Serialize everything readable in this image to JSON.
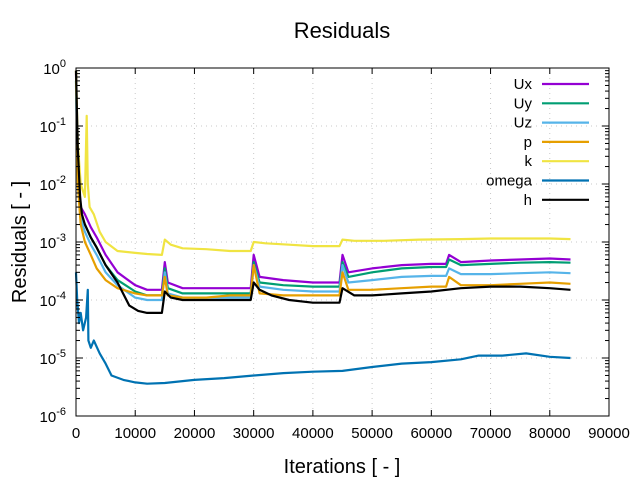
{
  "chart_data": {
    "type": "line",
    "title": "Residuals",
    "xlabel": "Iterations [ - ]",
    "ylabel": "Residuals [ - ]",
    "xlim": [
      0,
      90000
    ],
    "ylim": [
      1e-06,
      1
    ],
    "yscale": "log",
    "grid": true,
    "legend_position": "top-right",
    "x_ticks": [
      "0",
      "10000",
      "20000",
      "30000",
      "40000",
      "50000",
      "60000",
      "70000",
      "80000",
      "90000"
    ],
    "y_ticks": [
      {
        "base": "10",
        "exp": "-6"
      },
      {
        "base": "10",
        "exp": "-5"
      },
      {
        "base": "10",
        "exp": "-4"
      },
      {
        "base": "10",
        "exp": "-3"
      },
      {
        "base": "10",
        "exp": "-2"
      },
      {
        "base": "10",
        "exp": "-1"
      },
      {
        "base": "10",
        "exp": "0"
      }
    ],
    "series": [
      {
        "name": "Ux",
        "color": "#9400d3",
        "x": [
          0,
          300,
          800,
          1500,
          2500,
          3500,
          5000,
          7000,
          10000,
          12000,
          14500,
          15000,
          15500,
          18000,
          22000,
          26000,
          29500,
          30000,
          31000,
          35000,
          40000,
          44500,
          45000,
          46000,
          50000,
          55000,
          60000,
          62500,
          63000,
          65000,
          70000,
          75000,
          80000,
          83500
        ],
        "y": [
          0.8,
          0.02,
          0.004,
          0.003,
          0.0018,
          0.0012,
          0.0006,
          0.0003,
          0.00018,
          0.00015,
          0.00015,
          0.00045,
          0.0002,
          0.00016,
          0.00016,
          0.00016,
          0.00016,
          0.0006,
          0.00025,
          0.00022,
          0.0002,
          0.0002,
          0.0006,
          0.0003,
          0.00035,
          0.0004,
          0.00042,
          0.00042,
          0.0006,
          0.00045,
          0.00048,
          0.0005,
          0.00052,
          0.0005
        ]
      },
      {
        "name": "Uy",
        "color": "#009e73",
        "x": [
          0,
          300,
          800,
          1500,
          2500,
          3500,
          5000,
          7000,
          10000,
          12000,
          14500,
          15000,
          15500,
          18000,
          22000,
          26000,
          29500,
          30000,
          31000,
          35000,
          40000,
          44500,
          45000,
          46000,
          50000,
          55000,
          60000,
          62500,
          63000,
          65000,
          70000,
          75000,
          80000,
          83500
        ],
        "y": [
          0.6,
          0.015,
          0.003,
          0.002,
          0.0012,
          0.0008,
          0.0004,
          0.00022,
          0.00014,
          0.00012,
          0.00012,
          0.00035,
          0.00016,
          0.00013,
          0.00013,
          0.00013,
          0.00013,
          0.00045,
          0.0002,
          0.00018,
          0.00017,
          0.00017,
          0.00045,
          0.00025,
          0.0003,
          0.00035,
          0.00037,
          0.00037,
          0.0005,
          0.0004,
          0.00042,
          0.00044,
          0.00045,
          0.00044
        ]
      },
      {
        "name": "Uz",
        "color": "#56b4e9",
        "x": [
          0,
          300,
          800,
          1500,
          2500,
          3500,
          5000,
          7000,
          10000,
          12000,
          14500,
          15000,
          15500,
          18000,
          22000,
          26000,
          29500,
          30000,
          31000,
          35000,
          40000,
          44500,
          45000,
          46000,
          50000,
          55000,
          60000,
          62500,
          63000,
          65000,
          70000,
          75000,
          80000,
          83500
        ],
        "y": [
          0.5,
          0.012,
          0.0025,
          0.0015,
          0.0009,
          0.0006,
          0.0003,
          0.00018,
          0.00011,
          0.0001,
          0.0001,
          0.0003,
          0.00013,
          0.00011,
          0.00011,
          0.00011,
          0.00011,
          0.0004,
          0.00017,
          0.00015,
          0.00014,
          0.00014,
          0.0004,
          0.0002,
          0.00022,
          0.00025,
          0.00026,
          0.00026,
          0.00035,
          0.00028,
          0.00028,
          0.00029,
          0.0003,
          0.00029
        ]
      },
      {
        "name": "p",
        "color": "#e69f00",
        "x": [
          0,
          300,
          800,
          1500,
          2500,
          3500,
          5000,
          7000,
          10000,
          12000,
          14500,
          15000,
          15500,
          18000,
          22000,
          26000,
          29500,
          30000,
          31000,
          35000,
          40000,
          44500,
          45000,
          46000,
          50000,
          55000,
          60000,
          62500,
          63000,
          65000,
          70000,
          75000,
          80000,
          83500
        ],
        "y": [
          0.9,
          0.01,
          0.002,
          0.001,
          0.0006,
          0.00035,
          0.00022,
          0.00016,
          0.00013,
          0.00012,
          0.00012,
          0.00025,
          0.00012,
          0.00011,
          0.00011,
          0.00012,
          0.00012,
          0.0004,
          0.00013,
          0.00012,
          0.00012,
          0.00012,
          0.0003,
          0.00015,
          0.00015,
          0.00016,
          0.00017,
          0.00017,
          0.00025,
          0.00018,
          0.00018,
          0.00019,
          0.0002,
          0.00019
        ]
      },
      {
        "name": "k",
        "color": "#f0e442",
        "x": [
          0,
          300,
          800,
          1500,
          1800,
          2000,
          2300,
          3000,
          4000,
          5000,
          7000,
          10000,
          12000,
          14500,
          15000,
          16000,
          18000,
          22000,
          26000,
          29500,
          30000,
          32000,
          36000,
          40000,
          44500,
          45000,
          47000,
          52000,
          58000,
          65000,
          70000,
          75000,
          80000,
          83500
        ],
        "y": [
          0.9,
          0.05,
          0.01,
          0.006,
          0.15,
          0.01,
          0.004,
          0.003,
          0.0015,
          0.001,
          0.0007,
          0.00065,
          0.00062,
          0.0006,
          0.0011,
          0.0009,
          0.00078,
          0.00075,
          0.0007,
          0.0007,
          0.001,
          0.00095,
          0.0009,
          0.00085,
          0.00085,
          0.0011,
          0.00105,
          0.00105,
          0.0011,
          0.00112,
          0.00115,
          0.00115,
          0.00115,
          0.00112
        ]
      },
      {
        "name": "omega",
        "color": "#0072b2",
        "x": [
          0,
          200,
          500,
          800,
          1200,
          1700,
          2000,
          2100,
          2500,
          3000,
          4000,
          5000,
          6000,
          8000,
          10000,
          12000,
          15000,
          20000,
          25000,
          30000,
          35000,
          40000,
          45000,
          50000,
          55000,
          60000,
          65000,
          68000,
          72000,
          76000,
          80000,
          83500
        ],
        "y": [
          0.0003,
          0.0001,
          4e-05,
          6e-05,
          3e-05,
          5e-05,
          0.00015,
          2e-05,
          1.5e-05,
          2e-05,
          1.2e-05,
          8e-06,
          5e-06,
          4.2e-06,
          3.8e-06,
          3.6e-06,
          3.7e-06,
          4.2e-06,
          4.5e-06,
          5e-06,
          5.5e-06,
          5.8e-06,
          6e-06,
          7e-06,
          8e-06,
          8.5e-06,
          9.5e-06,
          1.1e-05,
          1.1e-05,
          1.2e-05,
          1.05e-05,
          1e-05
        ]
      },
      {
        "name": "h",
        "color": "#000000",
        "x": [
          0,
          300,
          700,
          1000,
          1500,
          2500,
          3500,
          5000,
          7000,
          9000,
          10500,
          12000,
          14500,
          15000,
          16000,
          18000,
          22000,
          26000,
          29500,
          30000,
          31000,
          33000,
          36000,
          40000,
          44500,
          45000,
          47000,
          50000,
          55000,
          60000,
          65000,
          70000,
          75000,
          80000,
          83500
        ],
        "y": [
          0.9,
          0.04,
          0.006,
          0.003,
          0.002,
          0.0012,
          0.0008,
          0.0004,
          0.0002,
          8e-05,
          6.5e-05,
          6e-05,
          6e-05,
          0.00014,
          0.00011,
          0.0001,
          0.0001,
          0.0001,
          0.0001,
          0.0002,
          0.00015,
          0.00012,
          0.0001,
          9e-05,
          9e-05,
          0.00016,
          0.00012,
          0.00012,
          0.00013,
          0.00014,
          0.00016,
          0.00017,
          0.00017,
          0.00016,
          0.00015
        ]
      }
    ]
  }
}
